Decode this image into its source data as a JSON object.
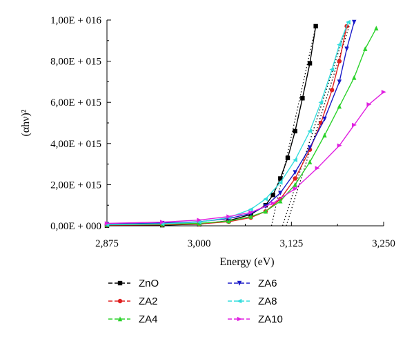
{
  "chart_data": {
    "type": "line",
    "title": "",
    "xlabel": "Energy (eV)",
    "ylabel": "(αhν)²",
    "xlim": [
      2.875,
      3.25
    ],
    "ylim": [
      0,
      1e+16
    ],
    "x_ticks": [
      {
        "value": 2.875,
        "label": "2,875"
      },
      {
        "value": 3.0,
        "label": "3,000"
      },
      {
        "value": 3.125,
        "label": "3,125"
      },
      {
        "value": 3.25,
        "label": "3,250"
      }
    ],
    "y_ticks": [
      {
        "value": 0,
        "label": "0,00E + 000"
      },
      {
        "value": 2000000000000000.0,
        "label": "2,00E + 015"
      },
      {
        "value": 4000000000000000.0,
        "label": "4,00E + 015"
      },
      {
        "value": 6000000000000000.0,
        "label": "6,00E + 015"
      },
      {
        "value": 8000000000000000.0,
        "label": "8,00E + 015"
      },
      {
        "value": 1e+16,
        "label": "1,00E + 016"
      }
    ],
    "legend_position": "bottom",
    "series": [
      {
        "name": "ZnO",
        "color": "#000000",
        "marker": "square",
        "x": [
          2.875,
          2.95,
          3.0,
          3.04,
          3.07,
          3.09,
          3.1,
          3.11,
          3.12,
          3.13,
          3.14,
          3.15,
          3.158
        ],
        "y": [
          10000000000000.0,
          30000000000000.0,
          80000000000000.0,
          250000000000000.0,
          550000000000000.0,
          1000000000000000.0,
          1500000000000000.0,
          2300000000000000.0,
          3300000000000000.0,
          4600000000000000.0,
          6200000000000000.0,
          7900000000000000.0,
          9700000000000000.0
        ]
      },
      {
        "name": "ZA2",
        "color": "#e02020",
        "marker": "circle",
        "x": [
          2.875,
          2.95,
          3.0,
          3.04,
          3.07,
          3.09,
          3.11,
          3.13,
          3.15,
          3.165,
          3.18,
          3.19,
          3.2
        ],
        "y": [
          30000000000000.0,
          50000000000000.0,
          90000000000000.0,
          200000000000000.0,
          400000000000000.0,
          700000000000000.0,
          1300000000000000.0,
          2300000000000000.0,
          3700000000000000.0,
          5000000000000000.0,
          6600000000000000.0,
          8000000000000000.0,
          9700000000000000.0
        ]
      },
      {
        "name": "ZA4",
        "color": "#2bd22b",
        "marker": "triangle-up",
        "x": [
          2.875,
          2.95,
          3.0,
          3.04,
          3.07,
          3.09,
          3.11,
          3.13,
          3.15,
          3.17,
          3.19,
          3.21,
          3.225,
          3.24
        ],
        "y": [
          50000000000000.0,
          80000000000000.0,
          120000000000000.0,
          230000000000000.0,
          450000000000000.0,
          700000000000000.0,
          1200000000000000.0,
          2000000000000000.0,
          3100000000000000.0,
          4400000000000000.0,
          5800000000000000.0,
          7200000000000000.0,
          8600000000000000.0,
          9600000000000000.0
        ]
      },
      {
        "name": "ZA6",
        "color": "#1a1ac8",
        "marker": "triangle-down",
        "x": [
          2.875,
          2.95,
          3.0,
          3.04,
          3.07,
          3.09,
          3.11,
          3.13,
          3.15,
          3.17,
          3.19,
          3.2,
          3.21
        ],
        "y": [
          80000000000000.0,
          130000000000000.0,
          200000000000000.0,
          350000000000000.0,
          600000000000000.0,
          950000000000000.0,
          1600000000000000.0,
          2600000000000000.0,
          3800000000000000.0,
          5200000000000000.0,
          7000000000000000.0,
          8600000000000000.0,
          9900000000000000.0
        ]
      },
      {
        "name": "ZA8",
        "color": "#33dddd",
        "marker": "triangle-left",
        "x": [
          2.875,
          2.95,
          3.0,
          3.04,
          3.07,
          3.09,
          3.11,
          3.13,
          3.15,
          3.165,
          3.18,
          3.19,
          3.202
        ],
        "y": [
          60000000000000.0,
          100000000000000.0,
          180000000000000.0,
          400000000000000.0,
          800000000000000.0,
          1300000000000000.0,
          2100000000000000.0,
          3200000000000000.0,
          4600000000000000.0,
          6000000000000000.0,
          7600000000000000.0,
          8800000000000000.0,
          9900000000000000.0
        ]
      },
      {
        "name": "ZA10",
        "color": "#e020e0",
        "marker": "triangle-right",
        "x": [
          2.875,
          2.95,
          3.0,
          3.04,
          3.07,
          3.1,
          3.13,
          3.16,
          3.19,
          3.21,
          3.23,
          3.25
        ],
        "y": [
          120000000000000.0,
          180000000000000.0,
          280000000000000.0,
          450000000000000.0,
          650000000000000.0,
          1100000000000000.0,
          1800000000000000.0,
          2800000000000000.0,
          3900000000000000.0,
          4900000000000000.0,
          5900000000000000.0,
          6500000000000000.0
        ]
      }
    ],
    "fit_lines": [
      {
        "x": [
          3.098,
          3.158
        ],
        "y": [
          0,
          9700000000000000.0
        ]
      },
      {
        "x": [
          3.113,
          3.2
        ],
        "y": [
          0,
          9700000000000000.0
        ]
      },
      {
        "x": [
          3.118,
          3.205
        ],
        "y": [
          0,
          9900000000000000.0
        ]
      }
    ]
  }
}
